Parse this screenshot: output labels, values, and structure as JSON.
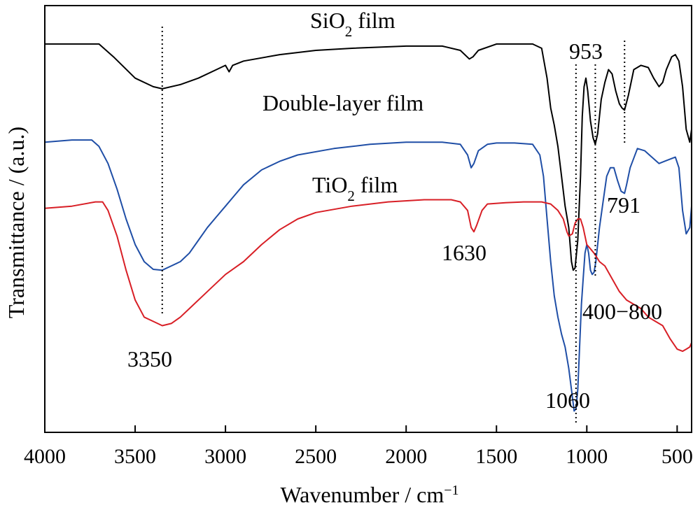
{
  "chart_data": {
    "type": "line",
    "xlabel": "Wavenumber / cm",
    "xlabel_sup": "−1",
    "ylabel": "Transmittance / (a.u.)",
    "xlim": [
      4000,
      420
    ],
    "x_reversed": true,
    "xticks": [
      4000,
      3500,
      3000,
      2500,
      2000,
      1500,
      1000,
      500
    ],
    "y_units": "a.u. (no tick labels)",
    "ylim": [
      0,
      100
    ],
    "grid": false,
    "legend": "none (curves labelled directly)",
    "colors": {
      "sio2": "#000000",
      "double": "#1f4ea6",
      "tio2": "#d81f26"
    },
    "series": [
      {
        "name_base": "SiO",
        "name_sub": "2",
        "name_tail": " film",
        "key": "sio2",
        "points": [
          [
            4000,
            91
          ],
          [
            3900,
            91
          ],
          [
            3780,
            91
          ],
          [
            3700,
            91
          ],
          [
            3620,
            88
          ],
          [
            3500,
            83
          ],
          [
            3400,
            81
          ],
          [
            3350,
            80.5
          ],
          [
            3250,
            81.5
          ],
          [
            3150,
            83
          ],
          [
            3050,
            85
          ],
          [
            3000,
            86
          ],
          [
            2980,
            84.5
          ],
          [
            2960,
            86
          ],
          [
            2900,
            87
          ],
          [
            2700,
            88.5
          ],
          [
            2500,
            89.5
          ],
          [
            2300,
            90
          ],
          [
            2000,
            90.5
          ],
          [
            1800,
            90.5
          ],
          [
            1700,
            89.5
          ],
          [
            1650,
            87.5
          ],
          [
            1630,
            88
          ],
          [
            1600,
            89.5
          ],
          [
            1500,
            91
          ],
          [
            1400,
            91
          ],
          [
            1300,
            91
          ],
          [
            1250,
            90
          ],
          [
            1220,
            83
          ],
          [
            1200,
            76
          ],
          [
            1180,
            72
          ],
          [
            1160,
            67
          ],
          [
            1140,
            60
          ],
          [
            1120,
            53
          ],
          [
            1100,
            48
          ],
          [
            1085,
            40
          ],
          [
            1075,
            38
          ],
          [
            1065,
            38.5
          ],
          [
            1050,
            45
          ],
          [
            1035,
            60
          ],
          [
            1025,
            74
          ],
          [
            1015,
            81
          ],
          [
            1005,
            83
          ],
          [
            995,
            80
          ],
          [
            980,
            73
          ],
          [
            965,
            69
          ],
          [
            953,
            67.5
          ],
          [
            940,
            70
          ],
          [
            920,
            78
          ],
          [
            900,
            82
          ],
          [
            880,
            85
          ],
          [
            860,
            84
          ],
          [
            840,
            80
          ],
          [
            820,
            77
          ],
          [
            805,
            76
          ],
          [
            791,
            75.5
          ],
          [
            770,
            79
          ],
          [
            740,
            85
          ],
          [
            700,
            86
          ],
          [
            660,
            85.5
          ],
          [
            630,
            83
          ],
          [
            600,
            81
          ],
          [
            580,
            82
          ],
          [
            560,
            85
          ],
          [
            530,
            88
          ],
          [
            510,
            88.5
          ],
          [
            490,
            87
          ],
          [
            470,
            81
          ],
          [
            450,
            71
          ],
          [
            430,
            68
          ],
          [
            420,
            71
          ]
        ]
      },
      {
        "name": "Double-layer film",
        "key": "double",
        "points": [
          [
            4000,
            68
          ],
          [
            3850,
            68.5
          ],
          [
            3740,
            68.5
          ],
          [
            3700,
            67
          ],
          [
            3650,
            63
          ],
          [
            3600,
            57
          ],
          [
            3550,
            50
          ],
          [
            3500,
            44
          ],
          [
            3450,
            40
          ],
          [
            3400,
            38.2
          ],
          [
            3350,
            38
          ],
          [
            3300,
            39
          ],
          [
            3250,
            40
          ],
          [
            3200,
            42
          ],
          [
            3150,
            45
          ],
          [
            3100,
            48
          ],
          [
            3050,
            50.5
          ],
          [
            3000,
            53
          ],
          [
            2950,
            55.5
          ],
          [
            2900,
            58
          ],
          [
            2800,
            61.5
          ],
          [
            2700,
            63.5
          ],
          [
            2600,
            65
          ],
          [
            2400,
            66.5
          ],
          [
            2200,
            67.5
          ],
          [
            2000,
            68
          ],
          [
            1800,
            68
          ],
          [
            1700,
            67.5
          ],
          [
            1660,
            65
          ],
          [
            1640,
            62
          ],
          [
            1625,
            63
          ],
          [
            1600,
            66
          ],
          [
            1550,
            67.5
          ],
          [
            1500,
            67.8
          ],
          [
            1400,
            67.8
          ],
          [
            1300,
            67.5
          ],
          [
            1260,
            65
          ],
          [
            1240,
            60
          ],
          [
            1220,
            50
          ],
          [
            1200,
            40
          ],
          [
            1180,
            32
          ],
          [
            1160,
            27
          ],
          [
            1140,
            23
          ],
          [
            1120,
            20
          ],
          [
            1100,
            15
          ],
          [
            1085,
            10
          ],
          [
            1070,
            5
          ],
          [
            1060,
            5.5
          ],
          [
            1050,
            10
          ],
          [
            1040,
            20
          ],
          [
            1030,
            30
          ],
          [
            1020,
            36
          ],
          [
            1010,
            42
          ],
          [
            1000,
            44
          ],
          [
            990,
            42
          ],
          [
            980,
            38
          ],
          [
            970,
            37
          ],
          [
            960,
            37.5
          ],
          [
            950,
            40
          ],
          [
            930,
            48
          ],
          [
            910,
            54
          ],
          [
            890,
            60
          ],
          [
            870,
            62
          ],
          [
            850,
            62
          ],
          [
            830,
            59
          ],
          [
            810,
            56.5
          ],
          [
            791,
            56
          ],
          [
            780,
            58
          ],
          [
            760,
            62
          ],
          [
            720,
            66.5
          ],
          [
            680,
            66
          ],
          [
            640,
            64.5
          ],
          [
            600,
            63
          ],
          [
            570,
            63.5
          ],
          [
            540,
            64
          ],
          [
            510,
            64.5
          ],
          [
            490,
            62
          ],
          [
            470,
            52
          ],
          [
            450,
            46.5
          ],
          [
            430,
            48
          ],
          [
            420,
            53
          ]
        ]
      },
      {
        "name_base": "TiO",
        "name_sub": "2",
        "name_tail": " film",
        "key": "tio2",
        "points": [
          [
            4000,
            52.5
          ],
          [
            3850,
            53
          ],
          [
            3720,
            54
          ],
          [
            3680,
            54
          ],
          [
            3650,
            52
          ],
          [
            3600,
            46
          ],
          [
            3550,
            38
          ],
          [
            3500,
            31
          ],
          [
            3450,
            27
          ],
          [
            3400,
            26
          ],
          [
            3350,
            25
          ],
          [
            3300,
            25.5
          ],
          [
            3250,
            27
          ],
          [
            3200,
            29
          ],
          [
            3100,
            33
          ],
          [
            3000,
            37
          ],
          [
            2900,
            40
          ],
          [
            2800,
            44
          ],
          [
            2700,
            47.5
          ],
          [
            2600,
            50
          ],
          [
            2500,
            51.5
          ],
          [
            2300,
            53
          ],
          [
            2100,
            54
          ],
          [
            1900,
            54.5
          ],
          [
            1750,
            54.5
          ],
          [
            1700,
            54
          ],
          [
            1660,
            52
          ],
          [
            1640,
            48
          ],
          [
            1625,
            47
          ],
          [
            1610,
            48.5
          ],
          [
            1580,
            52
          ],
          [
            1550,
            53.5
          ],
          [
            1450,
            53.8
          ],
          [
            1350,
            54
          ],
          [
            1250,
            54
          ],
          [
            1200,
            53.5
          ],
          [
            1160,
            52
          ],
          [
            1130,
            50
          ],
          [
            1110,
            47
          ],
          [
            1100,
            46
          ],
          [
            1080,
            46.5
          ],
          [
            1065,
            49
          ],
          [
            1050,
            50
          ],
          [
            1035,
            50
          ],
          [
            1020,
            48
          ],
          [
            1000,
            44
          ],
          [
            980,
            43
          ],
          [
            960,
            42
          ],
          [
            930,
            40
          ],
          [
            900,
            39
          ],
          [
            860,
            36
          ],
          [
            820,
            33
          ],
          [
            780,
            31
          ],
          [
            740,
            30
          ],
          [
            700,
            29
          ],
          [
            660,
            27
          ],
          [
            620,
            26
          ],
          [
            580,
            25
          ],
          [
            540,
            22
          ],
          [
            500,
            19.5
          ],
          [
            470,
            19
          ],
          [
            450,
            19.5
          ],
          [
            430,
            20
          ],
          [
            420,
            21
          ]
        ]
      }
    ],
    "annotations": [
      {
        "text": "3350",
        "x": 3350,
        "guide": true
      },
      {
        "text": "1630",
        "x": 1630,
        "guide": false
      },
      {
        "text": "1060",
        "x": 1060,
        "guide": true
      },
      {
        "text": "953",
        "x": 953,
        "guide": true
      },
      {
        "text": "791",
        "x": 791,
        "guide": true
      },
      {
        "text": "400−800",
        "x": 600,
        "guide": false
      }
    ]
  }
}
